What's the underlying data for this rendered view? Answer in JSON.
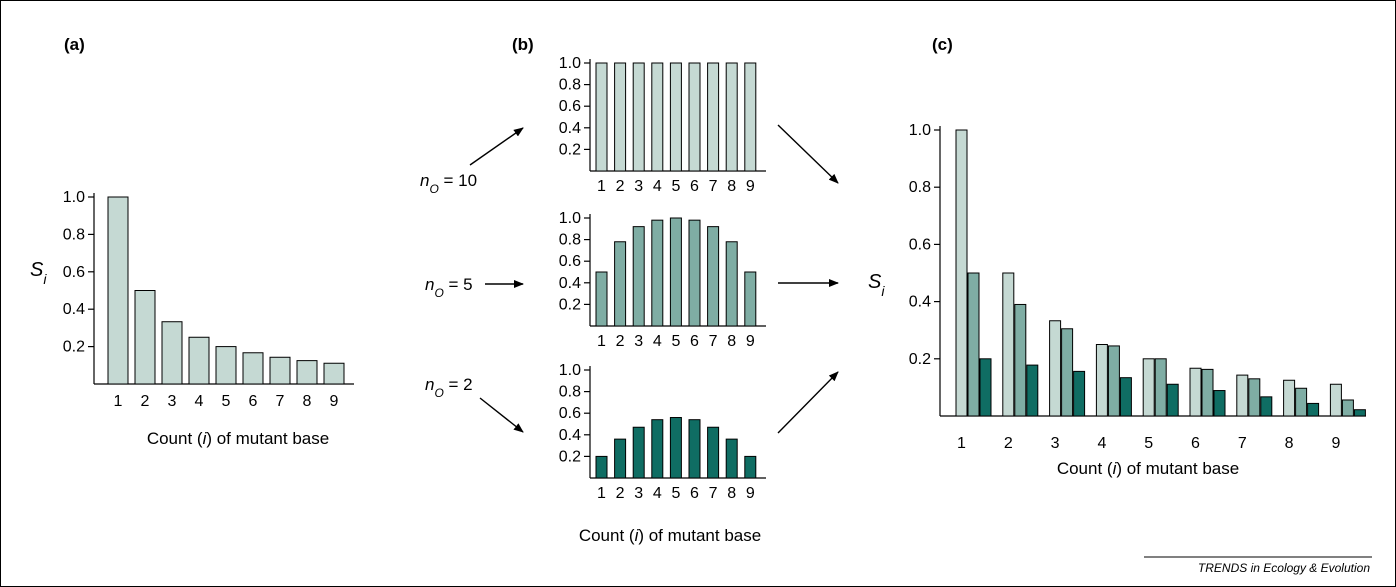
{
  "colors": {
    "light": "#c5d9d3",
    "medium": "#7fada4",
    "dark": "#0f6d63",
    "stroke": "#000000"
  },
  "credit": "TRENDS in Ecology & Evolution",
  "chart_data": [
    {
      "panel": "(a)",
      "type": "bar",
      "categories": [
        "1",
        "2",
        "3",
        "4",
        "5",
        "6",
        "7",
        "8",
        "9"
      ],
      "values": [
        1.0,
        0.5,
        0.333,
        0.25,
        0.2,
        0.167,
        0.143,
        0.125,
        0.111
      ],
      "xlabel": "Count (i) of mutant base",
      "ylabel": "Si",
      "ylim": [
        0,
        1.0
      ],
      "yticks": [
        "0.2",
        "0.4",
        "0.6",
        "0.8",
        "1.0"
      ]
    },
    {
      "panel": "(b)",
      "type": "bar",
      "categories": [
        "1",
        "2",
        "3",
        "4",
        "5",
        "6",
        "7",
        "8",
        "9"
      ],
      "xlabel": "Count (i) of mutant base",
      "ylim": [
        0,
        1.0
      ],
      "yticks": [
        "0.2",
        "0.4",
        "0.6",
        "0.8",
        "1.0"
      ],
      "series": [
        {
          "name": "nO = 10",
          "values": [
            1.0,
            1.0,
            1.0,
            1.0,
            1.0,
            1.0,
            1.0,
            1.0,
            1.0
          ]
        },
        {
          "name": "nO = 5",
          "values": [
            0.5,
            0.78,
            0.92,
            0.98,
            1.0,
            0.98,
            0.92,
            0.78,
            0.5
          ]
        },
        {
          "name": "nO = 2",
          "values": [
            0.2,
            0.36,
            0.47,
            0.54,
            0.56,
            0.54,
            0.47,
            0.36,
            0.2
          ]
        }
      ]
    },
    {
      "panel": "(c)",
      "type": "bar",
      "categories": [
        "1",
        "2",
        "3",
        "4",
        "5",
        "6",
        "7",
        "8",
        "9"
      ],
      "xlabel": "Count (i) of mutant base",
      "ylabel": "Si",
      "ylim": [
        0,
        1.0
      ],
      "yticks": [
        "0.2",
        "0.4",
        "0.6",
        "0.8",
        "1.0"
      ],
      "series": [
        {
          "values": [
            1.0,
            0.5,
            0.333,
            0.25,
            0.2,
            0.167,
            0.143,
            0.125,
            0.111
          ]
        },
        {
          "values": [
            0.5,
            0.39,
            0.305,
            0.245,
            0.2,
            0.163,
            0.13,
            0.097,
            0.056
          ]
        },
        {
          "values": [
            0.2,
            0.178,
            0.156,
            0.134,
            0.111,
            0.089,
            0.067,
            0.044,
            0.022
          ]
        }
      ]
    }
  ]
}
